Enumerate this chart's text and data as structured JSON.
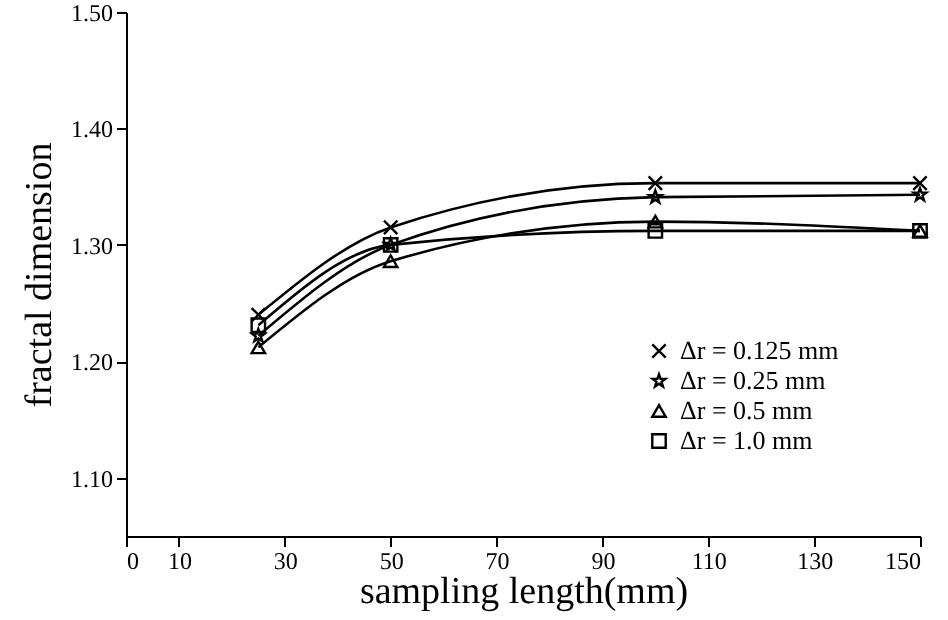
{
  "chart_data": {
    "type": "line",
    "xlabel": "sampling length(mm)",
    "ylabel": "fractal dimension",
    "x": [
      25,
      50,
      100,
      150
    ],
    "xlim": [
      0,
      150
    ],
    "xticks": [
      0,
      10,
      30,
      50,
      70,
      90,
      110,
      130,
      150
    ],
    "ylim": [
      1.05,
      1.5
    ],
    "yticks": [
      {
        "value": 1.1,
        "label": "1.10"
      },
      {
        "value": 1.2,
        "label": "1.20"
      },
      {
        "value": 1.3,
        "label": "1.30"
      },
      {
        "value": 1.4,
        "label": "1.40"
      },
      {
        "value": 1.5,
        "label": "1.50"
      }
    ],
    "grid": false,
    "legend": "bottom right",
    "line_style": "solid",
    "series": [
      {
        "name": "Δr = 0.125 mm",
        "color": "#000000",
        "marker": "cross",
        "values": [
          1.24,
          1.315,
          1.353,
          1.353
        ]
      },
      {
        "name": "Δr = 0.25 mm",
        "color": "#000000",
        "marker": "star",
        "values": [
          1.222,
          1.3,
          1.341,
          1.343
        ]
      },
      {
        "name": "Δr = 0.5 mm",
        "color": "#000000",
        "marker": "triangle",
        "values": [
          1.212,
          1.286,
          1.32,
          1.312
        ]
      },
      {
        "name": "Δr = 1.0 mm",
        "color": "#000000",
        "marker": "square",
        "values": [
          1.231,
          1.3,
          1.312,
          1.312
        ]
      }
    ]
  }
}
